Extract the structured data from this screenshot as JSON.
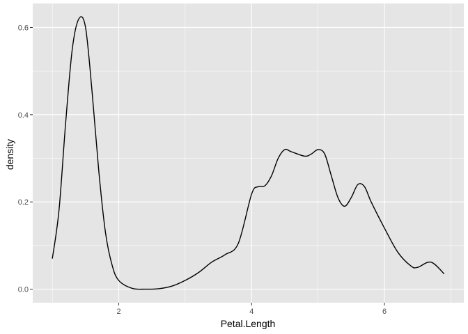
{
  "chart_data": {
    "type": "line",
    "xlabel": "Petal.Length",
    "ylabel": "density",
    "xlim": [
      0.705,
      7.195
    ],
    "ylim": [
      -0.031,
      0.655
    ],
    "x_ticks": [
      2,
      4,
      6
    ],
    "x_tick_labels": [
      "2",
      "4",
      "6"
    ],
    "y_ticks": [
      0.0,
      0.2,
      0.4,
      0.6
    ],
    "y_tick_labels": [
      "0.0",
      "0.2",
      "0.4",
      "0.6"
    ],
    "grid": true,
    "legend": "none",
    "colors": {
      "panel": "#e5e5e5",
      "grid": "#ffffff",
      "line": "#000000"
    },
    "series": [
      {
        "x": [
          1.0,
          1.1,
          1.2,
          1.3,
          1.4,
          1.5,
          1.6,
          1.7,
          1.8,
          1.9,
          2.0,
          2.2,
          2.4,
          2.6,
          2.8,
          3.0,
          3.2,
          3.4,
          3.6,
          3.8,
          4.0,
          4.1,
          4.2,
          4.3,
          4.4,
          4.5,
          4.6,
          4.8,
          4.9,
          5.0,
          5.1,
          5.2,
          5.3,
          5.4,
          5.5,
          5.6,
          5.7,
          5.8,
          6.0,
          6.2,
          6.4,
          6.5,
          6.7,
          6.9
        ],
        "y": [
          0.07,
          0.18,
          0.38,
          0.55,
          0.62,
          0.6,
          0.45,
          0.27,
          0.13,
          0.055,
          0.02,
          0.002,
          0.0,
          0.001,
          0.007,
          0.02,
          0.038,
          0.062,
          0.079,
          0.105,
          0.218,
          0.235,
          0.237,
          0.26,
          0.3,
          0.32,
          0.315,
          0.305,
          0.31,
          0.32,
          0.31,
          0.26,
          0.21,
          0.19,
          0.21,
          0.24,
          0.235,
          0.2,
          0.14,
          0.085,
          0.053,
          0.05,
          0.062,
          0.035
        ]
      }
    ]
  }
}
